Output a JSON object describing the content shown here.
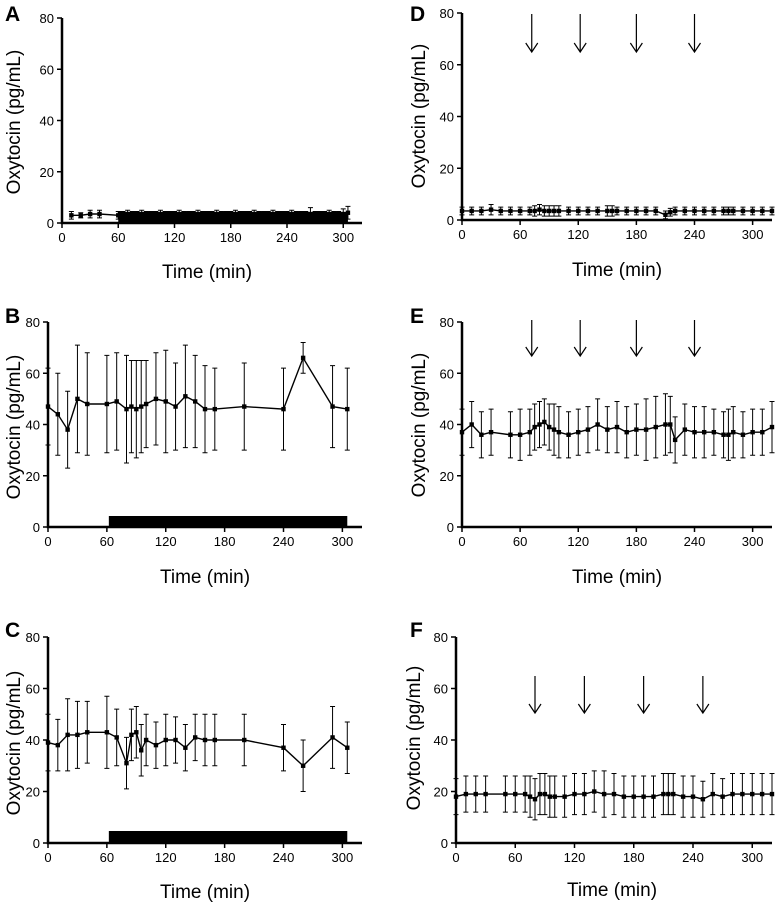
{
  "chart_data": [
    {
      "panel": "A",
      "type": "line",
      "xlabel": "Time (min)",
      "ylabel": "Oxytocin (pg/mL)",
      "xlim": [
        0,
        320
      ],
      "ylim": [
        0,
        80
      ],
      "xticks": [
        "0",
        "60",
        "120",
        "180",
        "240",
        "300"
      ],
      "yticks": [
        "0",
        "20",
        "40",
        "60",
        "80"
      ],
      "stimulus": "bar",
      "bar_range": [
        60,
        305
      ],
      "series": [
        {
          "name": "oxytocin",
          "x": [
            10,
            20,
            30,
            40,
            60,
            65,
            70,
            75,
            80,
            85,
            90,
            95,
            100,
            105,
            110,
            115,
            120,
            125,
            130,
            135,
            140,
            145,
            150,
            155,
            160,
            165,
            170,
            175,
            180,
            185,
            190,
            195,
            200,
            205,
            210,
            215,
            220,
            225,
            230,
            235,
            240,
            245,
            250,
            255,
            260,
            265,
            270,
            275,
            280,
            285,
            290,
            295,
            300,
            305
          ],
          "y": [
            3,
            3,
            3.5,
            3.5,
            3,
            3,
            3.5,
            3,
            3,
            3.5,
            3,
            3,
            3,
            3.5,
            3,
            3,
            3,
            3.5,
            3,
            3,
            3,
            3.5,
            3,
            3,
            3,
            3.5,
            3,
            3,
            3,
            3.5,
            3,
            3,
            3,
            3.5,
            3,
            3,
            3,
            3.5,
            3,
            3,
            3,
            3.5,
            3,
            3,
            3,
            3.5,
            3,
            3,
            3,
            3.5,
            3,
            3,
            3.5,
            4
          ],
          "err": [
            1.5,
            1,
            1.5,
            1.5,
            1.5,
            1.5,
            1.5,
            1.5,
            1.5,
            1.5,
            1.5,
            1.5,
            1.5,
            1.5,
            1.5,
            1.5,
            1.5,
            1.5,
            1.5,
            1.5,
            1.5,
            1.5,
            1.5,
            1.5,
            1.5,
            1.5,
            1.5,
            1.5,
            1.5,
            1.5,
            1.5,
            1.5,
            1.5,
            1.5,
            1.5,
            1.5,
            1.5,
            1.5,
            1.5,
            1.5,
            1.5,
            1.5,
            1.5,
            1.5,
            1.5,
            2.5,
            1.5,
            1.5,
            1.5,
            1.5,
            1.5,
            1.5,
            2,
            2.5
          ]
        }
      ]
    },
    {
      "panel": "B",
      "type": "line",
      "xlabel": "Time (min)",
      "ylabel": "Oxytocin (pg/mL)",
      "xlim": [
        0,
        320
      ],
      "ylim": [
        0,
        80
      ],
      "xticks": [
        "0",
        "60",
        "120",
        "180",
        "240",
        "300"
      ],
      "yticks": [
        "0",
        "20",
        "40",
        "60",
        "80"
      ],
      "stimulus": "bar",
      "bar_range": [
        62,
        305
      ],
      "series": [
        {
          "name": "oxytocin",
          "x": [
            0,
            10,
            20,
            30,
            40,
            60,
            70,
            80,
            85,
            90,
            95,
            100,
            110,
            120,
            130,
            140,
            150,
            160,
            170,
            200,
            240,
            260,
            290,
            305
          ],
          "y": [
            47,
            44,
            38,
            50,
            48,
            48,
            49,
            46,
            47,
            46,
            47,
            48,
            50,
            49,
            47,
            51,
            49,
            46,
            46,
            47,
            46,
            66,
            47,
            46
          ],
          "err": [
            15,
            16,
            15,
            21,
            20,
            19,
            19,
            21,
            18,
            19,
            18,
            17,
            18,
            20,
            17,
            20,
            18,
            17,
            16,
            17,
            16,
            6,
            16,
            16
          ]
        }
      ]
    },
    {
      "panel": "C",
      "type": "line",
      "xlabel": "Time (min)",
      "ylabel": "Oxytocin (pg/mL)",
      "xlim": [
        0,
        320
      ],
      "ylim": [
        0,
        80
      ],
      "xticks": [
        "0",
        "60",
        "120",
        "180",
        "240",
        "300"
      ],
      "yticks": [
        "0",
        "20",
        "40",
        "60",
        "80"
      ],
      "stimulus": "bar",
      "bar_range": [
        62,
        305
      ],
      "series": [
        {
          "name": "oxytocin",
          "x": [
            0,
            10,
            20,
            30,
            40,
            60,
            70,
            80,
            85,
            90,
            95,
            100,
            110,
            120,
            130,
            140,
            150,
            160,
            170,
            200,
            240,
            260,
            290,
            305
          ],
          "y": [
            39,
            38,
            42,
            42,
            43,
            43,
            41,
            31,
            42,
            43,
            36,
            40,
            38,
            40,
            40,
            37,
            41,
            40,
            40,
            40,
            37,
            30,
            41,
            37
          ],
          "err": [
            11,
            10,
            14,
            13,
            12,
            14,
            11,
            10,
            10,
            10,
            10,
            10,
            9,
            10,
            9,
            9,
            9,
            10,
            10,
            10,
            9,
            10,
            12,
            10
          ]
        }
      ]
    },
    {
      "panel": "D",
      "type": "line",
      "xlabel": "Time (min)",
      "ylabel": "Oxytocin (pg/mL)",
      "xlim": [
        0,
        320
      ],
      "ylim": [
        0,
        80
      ],
      "xticks": [
        "0",
        "60",
        "120",
        "180",
        "240",
        "300"
      ],
      "yticks": [
        "0",
        "20",
        "40",
        "60",
        "80"
      ],
      "stimulus": "arrows",
      "arrow_times": [
        72,
        122,
        180,
        240
      ],
      "series": [
        {
          "name": "oxytocin",
          "x": [
            0,
            10,
            20,
            30,
            40,
            50,
            60,
            70,
            75,
            80,
            85,
            90,
            95,
            100,
            110,
            120,
            130,
            140,
            150,
            155,
            160,
            170,
            180,
            190,
            200,
            210,
            215,
            220,
            230,
            240,
            250,
            260,
            270,
            275,
            280,
            290,
            300,
            310,
            320
          ],
          "y": [
            3.5,
            3.5,
            3.5,
            4,
            3.5,
            3.5,
            3.5,
            3.5,
            3.5,
            4,
            3.5,
            3.5,
            3.5,
            3.5,
            3.5,
            3.5,
            3.5,
            3.5,
            3.5,
            3.5,
            3.5,
            3.5,
            3.5,
            3.5,
            3.5,
            2,
            3,
            3.5,
            3.5,
            3.5,
            3.5,
            3.5,
            3.5,
            3.5,
            3.5,
            3.5,
            3.5,
            3.5,
            3.5
          ],
          "err": [
            1.5,
            1.5,
            1.5,
            2,
            1.5,
            1.5,
            1.5,
            1.5,
            2,
            2,
            2,
            2,
            2,
            2,
            1.5,
            1.5,
            1.5,
            1.5,
            2,
            2,
            1.5,
            1.5,
            1.5,
            1.5,
            1.5,
            1.5,
            1.5,
            1.5,
            1.5,
            1.5,
            1.5,
            1.5,
            1.5,
            1.5,
            1.5,
            1.5,
            1.5,
            1.5,
            1.5
          ]
        }
      ]
    },
    {
      "panel": "E",
      "type": "line",
      "xlabel": "Time (min)",
      "ylabel": "Oxytocin (pg/mL)",
      "xlim": [
        0,
        320
      ],
      "ylim": [
        0,
        80
      ],
      "xticks": [
        "0",
        "60",
        "120",
        "180",
        "240",
        "300"
      ],
      "yticks": [
        "0",
        "20",
        "40",
        "60",
        "80"
      ],
      "stimulus": "arrows",
      "arrow_times": [
        72,
        122,
        180,
        240
      ],
      "series": [
        {
          "name": "oxytocin",
          "x": [
            0,
            10,
            20,
            30,
            50,
            60,
            70,
            75,
            80,
            85,
            90,
            95,
            100,
            110,
            120,
            130,
            140,
            150,
            160,
            170,
            180,
            190,
            200,
            210,
            215,
            220,
            230,
            240,
            250,
            260,
            270,
            275,
            280,
            290,
            300,
            310,
            320
          ],
          "y": [
            37,
            40,
            36,
            37,
            36,
            36,
            37,
            39,
            40,
            41,
            39,
            38,
            37,
            36,
            37,
            38,
            40,
            38,
            39,
            37,
            38,
            38,
            39,
            40,
            40,
            34,
            38,
            37,
            37,
            37,
            36,
            36,
            37,
            36,
            37,
            37,
            39
          ],
          "err": [
            9,
            9,
            9,
            9,
            9,
            10,
            9,
            9,
            9,
            9,
            9,
            10,
            10,
            9,
            9,
            9,
            10,
            9,
            10,
            10,
            10,
            12,
            12,
            12,
            11,
            9,
            10,
            10,
            10,
            9,
            9,
            10,
            10,
            9,
            9,
            9,
            10
          ]
        }
      ]
    },
    {
      "panel": "F",
      "type": "line",
      "xlabel": "Time (min)",
      "ylabel": "Oxytocin (pg/mL)",
      "xlim": [
        0,
        320
      ],
      "ylim": [
        0,
        80
      ],
      "xticks": [
        "0",
        "60",
        "120",
        "180",
        "240",
        "300"
      ],
      "yticks": [
        "0",
        "20",
        "40",
        "60",
        "80"
      ],
      "stimulus": "arrows",
      "arrow_times": [
        80,
        130,
        190,
        250
      ],
      "series": [
        {
          "name": "oxytocin",
          "x": [
            0,
            10,
            20,
            30,
            50,
            60,
            70,
            75,
            80,
            85,
            90,
            95,
            100,
            110,
            120,
            130,
            140,
            150,
            160,
            170,
            180,
            190,
            200,
            210,
            215,
            220,
            230,
            240,
            250,
            260,
            270,
            280,
            290,
            300,
            310,
            320
          ],
          "y": [
            18,
            19,
            19,
            19,
            19,
            19,
            19,
            18,
            17,
            19,
            19,
            18,
            18,
            18,
            19,
            19,
            20,
            19,
            19,
            18,
            18,
            18,
            18,
            19,
            19,
            19,
            18,
            18,
            17,
            19,
            18,
            19,
            19,
            19,
            19,
            19
          ],
          "err": [
            7,
            7,
            7,
            7,
            7,
            7,
            7,
            8,
            8,
            8,
            8,
            8,
            8,
            8,
            8,
            8,
            8,
            9,
            8,
            8,
            8,
            8,
            8,
            8,
            8,
            8,
            8,
            8,
            7,
            8,
            7,
            8,
            8,
            8,
            8,
            8
          ]
        }
      ]
    }
  ]
}
